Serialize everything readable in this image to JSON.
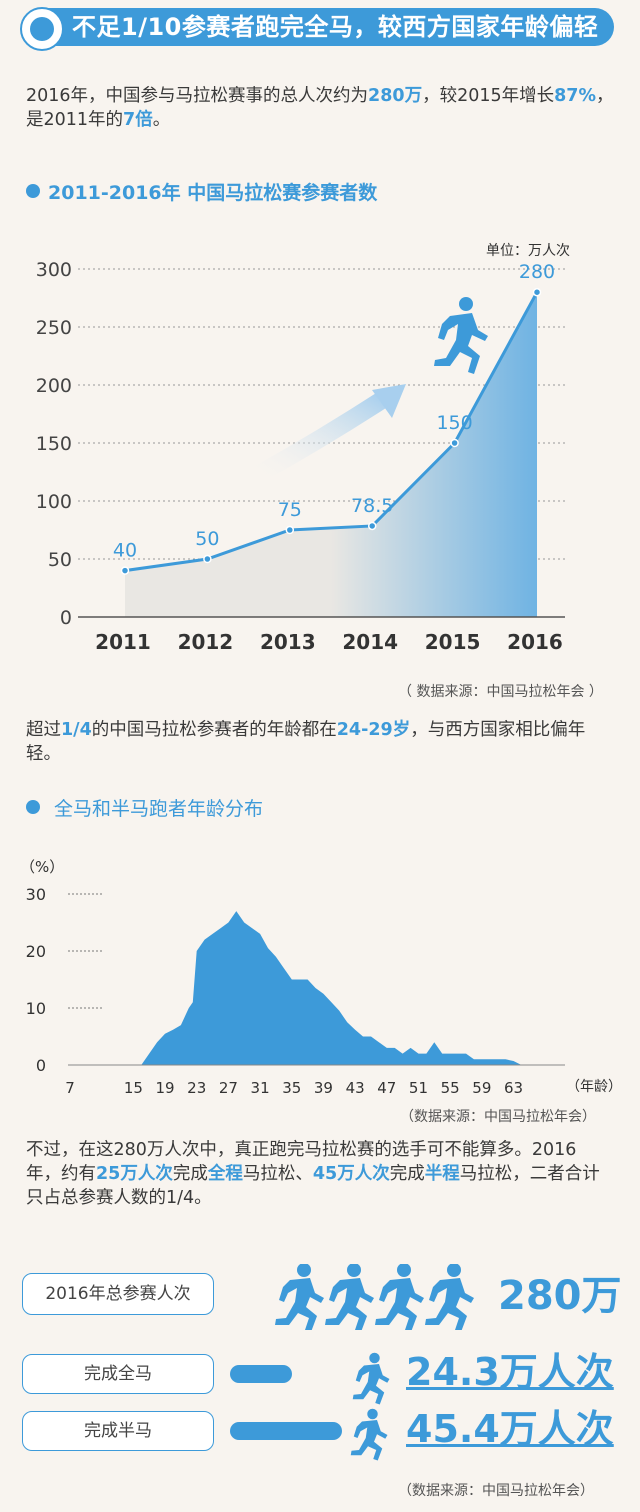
{
  "header": {
    "title": "不足1/10参赛者跑完全马，较西方国家年龄偏轻"
  },
  "intro": {
    "p1": "2016年，中国参与马拉松赛事的总人次约为",
    "p1_hl1": "280万",
    "p1_b": "，较2015年增长",
    "p1_hl2": "87%",
    "p1_c": "，是2011年的",
    "p1_hl3": "7倍",
    "p1_d": "。"
  },
  "section1": {
    "title": "2011-2016年 中国马拉松赛参赛者数",
    "unit": "单位：万人次",
    "source": "（ 数据来源：中国马拉松年会 ）"
  },
  "para2": {
    "a": "超过",
    "hl1": "1/4",
    "b": "的中国马拉松参赛者的年龄都在",
    "hl2": "24-29岁",
    "c": "，与西方国家相比偏年轻。"
  },
  "section2": {
    "title": "全马和半马跑者年龄分布",
    "unit": "（%）",
    "xunit": "（年龄）",
    "source": "（数据来源：中国马拉松年会）"
  },
  "para3": {
    "a": "不过，在这280万人次中，真正跑完马拉松赛的选手可不能算多。2016年，约有",
    "hl1": "25万人次",
    "b": "完成",
    "hl2": "全程",
    "c": "马拉松、",
    "hl3": "45万人次",
    "d": "完成",
    "hl4": "半程",
    "e": "马拉松，二者合计只占总参赛人数的1/4。"
  },
  "summary": {
    "total_label": "2016年总参赛人次",
    "total_value": "280万",
    "full_label": "完成全马",
    "full_value": "24.3万人次",
    "half_label": "完成半马",
    "half_value": "45.4万人次",
    "source": "（数据来源：中国马拉松年会）"
  },
  "colors": {
    "accent": "#3d9ad9",
    "background": "#f8f4ef"
  },
  "chart_data": [
    {
      "type": "area",
      "title": "2011-2016年 中国马拉松赛参赛者数",
      "ylabel": "单位：万人次",
      "categories": [
        "2011",
        "2012",
        "2013",
        "2014",
        "2015",
        "2016"
      ],
      "values": [
        40,
        50,
        75,
        78.5,
        150,
        280
      ],
      "value_labels": [
        "40",
        "50",
        "75",
        "78.5",
        "150",
        "280"
      ],
      "yticks": [
        0,
        50,
        100,
        150,
        200,
        250,
        300
      ],
      "ylim": [
        0,
        300
      ],
      "grid": true
    },
    {
      "type": "area",
      "title": "全马和半马跑者年龄分布",
      "ylabel": "（%）",
      "xlabel": "（年龄）",
      "xticks": [
        7,
        15,
        19,
        23,
        27,
        31,
        35,
        39,
        43,
        47,
        51,
        55,
        59,
        63
      ],
      "yticks": [
        0,
        10,
        20,
        30
      ],
      "ylim": [
        0,
        30
      ],
      "xlim": [
        7,
        65
      ],
      "x": [
        16,
        17,
        18,
        19,
        20,
        21,
        22,
        22.5,
        23,
        24,
        25,
        26,
        27,
        28,
        29,
        30,
        31,
        32,
        33,
        34,
        35,
        36,
        37,
        38,
        39,
        40,
        41,
        42,
        43,
        44,
        45,
        46,
        47,
        48,
        49,
        50,
        51,
        52,
        53,
        54,
        55,
        56,
        57,
        58,
        59,
        60,
        61,
        62,
        63,
        64
      ],
      "y": [
        0,
        2,
        4,
        5.5,
        6.2,
        7,
        10,
        11,
        20,
        22,
        23,
        24,
        25,
        27,
        25,
        24,
        23,
        20.5,
        19,
        17,
        15,
        15,
        15,
        13.5,
        12.5,
        11,
        9.5,
        7.5,
        6.2,
        5,
        5,
        4,
        3,
        3,
        2,
        3,
        2,
        2,
        4,
        2,
        2,
        2,
        2,
        1,
        1,
        1,
        1,
        1,
        0.7,
        0
      ],
      "grid": true
    }
  ]
}
